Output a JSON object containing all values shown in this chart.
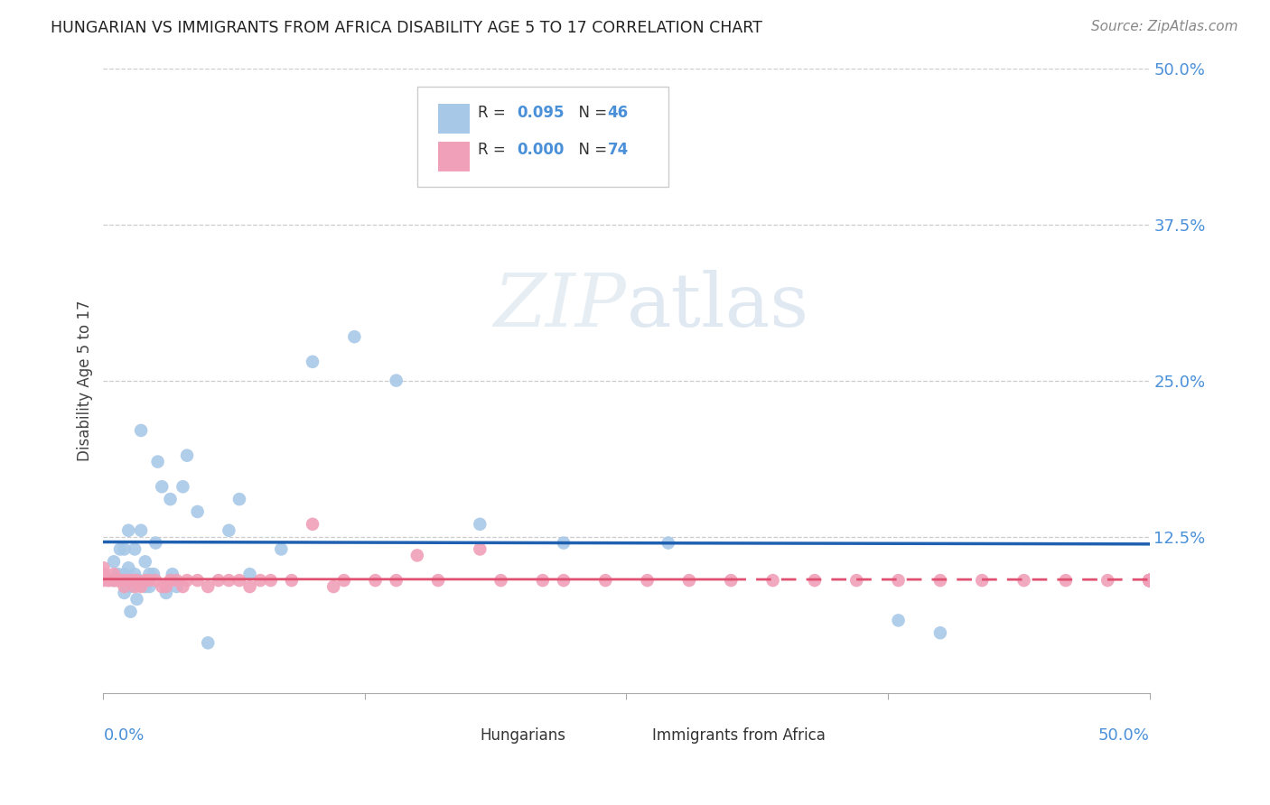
{
  "title": "HUNGARIAN VS IMMIGRANTS FROM AFRICA DISABILITY AGE 5 TO 17 CORRELATION CHART",
  "source": "Source: ZipAtlas.com",
  "ylabel": "Disability Age 5 to 17",
  "xlim": [
    0.0,
    0.5
  ],
  "ylim": [
    0.0,
    0.5
  ],
  "legend_r_blue": "0.095",
  "legend_n_blue": "46",
  "legend_r_pink": "0.000",
  "legend_n_pink": "74",
  "blue_color": "#a8c8e8",
  "pink_color": "#f0a0b8",
  "line_blue": "#2060b0",
  "line_pink": "#e05070",
  "bg_color": "#ffffff",
  "grid_color": "#cccccc",
  "hungarian_x": [
    0.005,
    0.005,
    0.007,
    0.008,
    0.01,
    0.01,
    0.01,
    0.012,
    0.012,
    0.013,
    0.013,
    0.014,
    0.015,
    0.015,
    0.016,
    0.017,
    0.018,
    0.018,
    0.02,
    0.02,
    0.022,
    0.022,
    0.024,
    0.025,
    0.026,
    0.028,
    0.03,
    0.032,
    0.033,
    0.035,
    0.038,
    0.04,
    0.045,
    0.05,
    0.06,
    0.065,
    0.07,
    0.085,
    0.1,
    0.12,
    0.14,
    0.18,
    0.22,
    0.27,
    0.38,
    0.4
  ],
  "hungarian_y": [
    0.09,
    0.105,
    0.095,
    0.115,
    0.08,
    0.095,
    0.115,
    0.1,
    0.13,
    0.065,
    0.085,
    0.09,
    0.095,
    0.115,
    0.075,
    0.09,
    0.21,
    0.13,
    0.085,
    0.105,
    0.085,
    0.095,
    0.095,
    0.12,
    0.185,
    0.165,
    0.08,
    0.155,
    0.095,
    0.085,
    0.165,
    0.19,
    0.145,
    0.04,
    0.13,
    0.155,
    0.095,
    0.115,
    0.265,
    0.285,
    0.25,
    0.135,
    0.12,
    0.12,
    0.058,
    0.048
  ],
  "african_x": [
    0.0,
    0.0,
    0.0,
    0.002,
    0.003,
    0.005,
    0.005,
    0.006,
    0.007,
    0.008,
    0.01,
    0.01,
    0.01,
    0.012,
    0.013,
    0.015,
    0.015,
    0.016,
    0.018,
    0.02,
    0.022,
    0.025,
    0.028,
    0.03,
    0.032,
    0.035,
    0.038,
    0.04,
    0.045,
    0.05,
    0.055,
    0.06,
    0.065,
    0.07,
    0.075,
    0.08,
    0.09,
    0.1,
    0.11,
    0.115,
    0.13,
    0.14,
    0.15,
    0.16,
    0.18,
    0.19,
    0.21,
    0.22,
    0.24,
    0.26,
    0.28,
    0.3,
    0.32,
    0.34,
    0.36,
    0.38,
    0.4,
    0.42,
    0.44,
    0.46,
    0.48,
    0.5,
    0.5,
    0.5,
    0.5,
    0.5,
    0.5,
    0.5,
    0.5,
    0.5,
    0.5,
    0.5,
    0.5,
    0.5
  ],
  "african_y": [
    0.09,
    0.095,
    0.1,
    0.09,
    0.09,
    0.09,
    0.095,
    0.09,
    0.09,
    0.09,
    0.085,
    0.09,
    0.09,
    0.09,
    0.09,
    0.085,
    0.09,
    0.09,
    0.085,
    0.09,
    0.09,
    0.09,
    0.085,
    0.085,
    0.09,
    0.09,
    0.085,
    0.09,
    0.09,
    0.085,
    0.09,
    0.09,
    0.09,
    0.085,
    0.09,
    0.09,
    0.09,
    0.135,
    0.085,
    0.09,
    0.09,
    0.09,
    0.11,
    0.09,
    0.115,
    0.09,
    0.09,
    0.09,
    0.09,
    0.09,
    0.09,
    0.09,
    0.09,
    0.09,
    0.09,
    0.09,
    0.09,
    0.09,
    0.09,
    0.09,
    0.09,
    0.09,
    0.09,
    0.09,
    0.09,
    0.09,
    0.09,
    0.09,
    0.09,
    0.09,
    0.09,
    0.09,
    0.09,
    0.09
  ]
}
